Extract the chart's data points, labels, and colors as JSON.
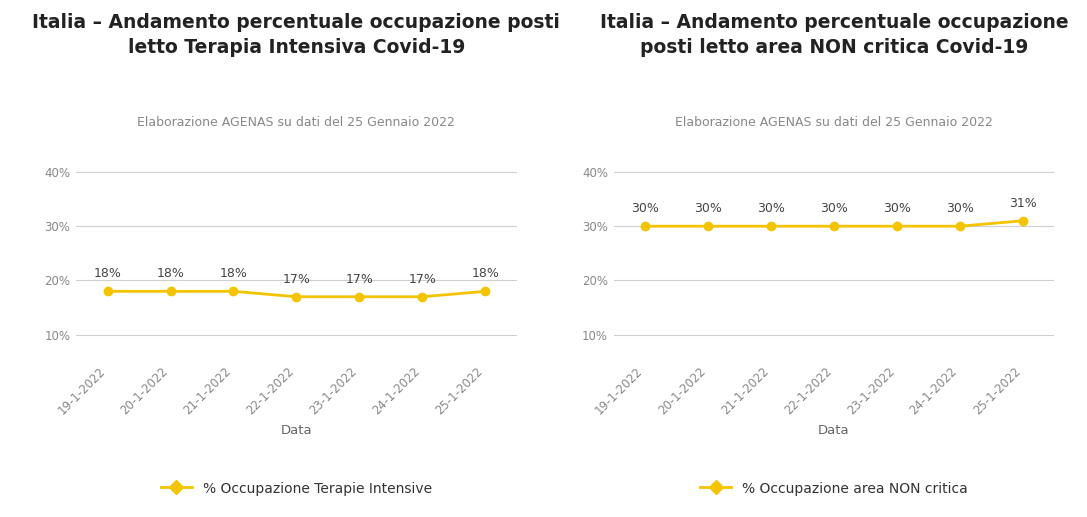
{
  "dates": [
    "19-1-2022",
    "20-1-2022",
    "21-1-2022",
    "22-1-2022",
    "23-1-2022",
    "24-1-2022",
    "25-1-2022"
  ],
  "values_intensive": [
    18,
    18,
    18,
    17,
    17,
    17,
    18
  ],
  "values_non_critica": [
    30,
    30,
    30,
    30,
    30,
    30,
    31
  ],
  "title1": "Italia – Andamento percentuale occupazione posti\nletto Terapia Intensiva Covid-19",
  "title2": "Italia – Andamento percentuale occupazione\nposti letto area NON critica Covid-19",
  "subtitle": "Elaborazione AGENAS su dati del 25 Gennaio 2022",
  "xlabel": "Data",
  "legend1": "% Occupazione Terapie Intensive",
  "legend2": "% Occupazione area NON critica",
  "line_color": "#F5C400",
  "marker_color": "#F5C400",
  "bg_color": "#ffffff",
  "grid_color": "#d0d0d0",
  "yticks": [
    10,
    20,
    30,
    40
  ],
  "ylim": [
    5,
    45
  ],
  "title_fontsize": 13.5,
  "subtitle_fontsize": 9,
  "xlabel_fontsize": 9.5,
  "tick_fontsize": 8.5,
  "annotation_fontsize": 9,
  "legend_fontsize": 10
}
